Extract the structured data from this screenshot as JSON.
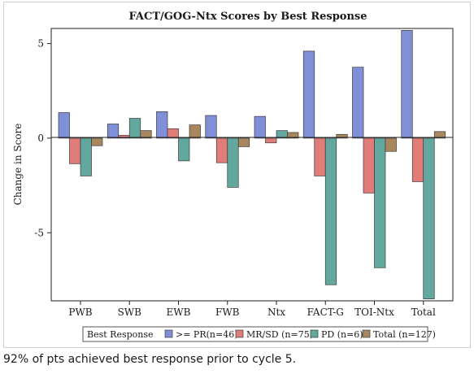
{
  "footnote": "92% of pts achieved best response prior to cycle 5.",
  "chart_data": {
    "type": "bar",
    "title": "FACT/GOG-Ntx Scores by Best Response",
    "xlabel": "",
    "ylabel": "Change in Score",
    "ylim": [
      -8.6,
      5.8
    ],
    "yticks": [
      5,
      0,
      -5
    ],
    "ytick_labels": [
      "5",
      "0",
      "-5"
    ],
    "categories": [
      "PWB",
      "SWB",
      "EWB",
      "FWB",
      "Ntx",
      "FACT-G",
      "TOI-Ntx",
      "Total"
    ],
    "legend_title": "Best Response",
    "legend_position": "bottom",
    "series": [
      {
        "name": ">= PR(n=46)",
        "color": "#7f8fd8",
        "values": [
          1.35,
          0.75,
          1.4,
          1.2,
          1.15,
          4.6,
          3.75,
          5.7
        ]
      },
      {
        "name": "MR/SD (n=75)",
        "color": "#e07d78",
        "values": [
          -1.35,
          0.15,
          0.5,
          -1.3,
          -0.25,
          -2.0,
          -2.9,
          -2.3
        ]
      },
      {
        "name": "PD (n=6)",
        "color": "#62a89f",
        "values": [
          -2.0,
          1.05,
          -1.2,
          -2.6,
          0.4,
          -7.75,
          -6.85,
          -8.5
        ]
      },
      {
        "name": "Total (n=127)",
        "color": "#a8875f",
        "values": [
          -0.4,
          0.4,
          0.7,
          -0.45,
          0.3,
          0.2,
          -0.7,
          0.35
        ]
      }
    ]
  }
}
